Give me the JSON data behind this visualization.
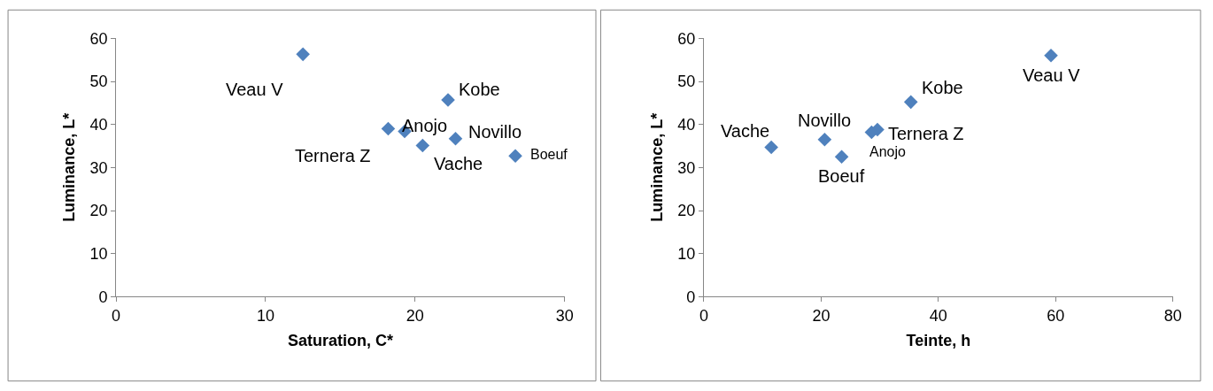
{
  "chart_data": [
    {
      "type": "scatter",
      "xlabel": "Saturation, C*",
      "ylabel": "Luminance, L*",
      "x": [
        12.5,
        22.2,
        18.2,
        19.3,
        20.5,
        22.7,
        26.7
      ],
      "values": [
        56.3,
        45.7,
        39.0,
        38.4,
        35.1,
        36.7,
        32.7
      ],
      "color": "#4f81bd",
      "marker": "diamond",
      "xlim": [
        0,
        30
      ],
      "xticks": [
        0,
        10,
        20,
        30
      ],
      "ylim": [
        0,
        60
      ],
      "yticks": [
        0,
        10,
        20,
        30,
        40,
        50,
        60
      ],
      "annotations": [
        {
          "text": "Veau V",
          "x": 12.5,
          "y": 56.3
        },
        {
          "text": "Kobe",
          "x": 22.2,
          "y": 45.7
        },
        {
          "text": "Ternera Z",
          "x": 18.2,
          "y": 39.0
        },
        {
          "text": "Anojo",
          "x": 19.3,
          "y": 38.4
        },
        {
          "text": "Vache",
          "x": 20.5,
          "y": 35.1
        },
        {
          "text": "Novillo",
          "x": 22.7,
          "y": 36.7
        },
        {
          "text": "Boeuf",
          "x": 26.7,
          "y": 32.7
        }
      ]
    },
    {
      "type": "scatter",
      "xlabel": "Teinte, h",
      "ylabel": "Luminance, L*",
      "x": [
        59.2,
        35.3,
        29.6,
        28.6,
        20.6,
        11.5,
        23.5
      ],
      "values": [
        56.0,
        45.2,
        38.8,
        38.2,
        36.5,
        34.7,
        32.5
      ],
      "color": "#4f81bd",
      "marker": "diamond",
      "xlim": [
        0,
        80
      ],
      "xticks": [
        0,
        20,
        40,
        60,
        80
      ],
      "ylim": [
        0,
        60
      ],
      "yticks": [
        0,
        10,
        20,
        30,
        40,
        50,
        60
      ],
      "annotations": [
        {
          "text": "Veau V",
          "x": 59.2,
          "y": 56.0
        },
        {
          "text": "Kobe",
          "x": 35.3,
          "y": 45.2
        },
        {
          "text": "Ternera Z",
          "x": 29.6,
          "y": 38.8
        },
        {
          "text": "Anojo",
          "x": 28.6,
          "y": 38.2
        },
        {
          "text": "Novillo",
          "x": 20.6,
          "y": 36.5
        },
        {
          "text": "Vache",
          "x": 11.5,
          "y": 34.7
        },
        {
          "text": "Boeuf",
          "x": 23.5,
          "y": 32.5
        }
      ]
    }
  ]
}
